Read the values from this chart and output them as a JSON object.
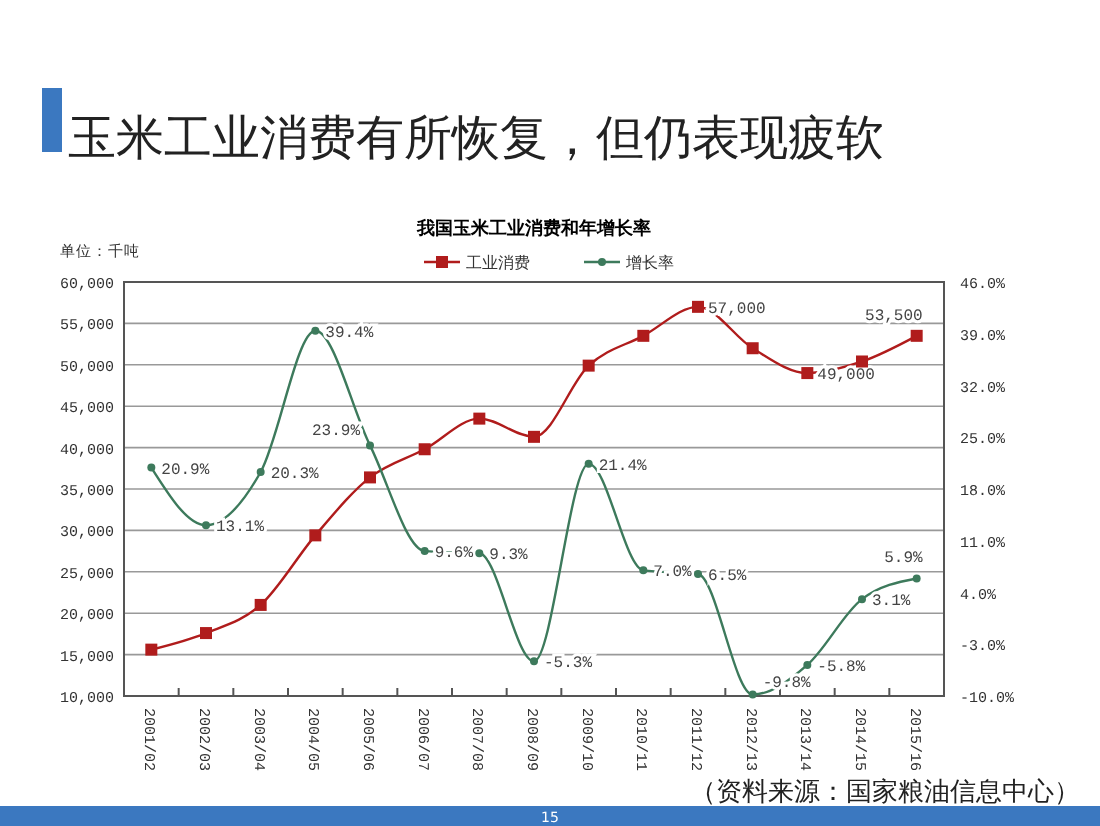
{
  "chart_data": {
    "type": "line",
    "title": "玉米工业消费有所恢复，但仍表现疲软",
    "subtitle": "我国玉米工业消费和年增长率",
    "ylabel": "单位：千吨",
    "categories": [
      "2001/02",
      "2002/03",
      "2003/04",
      "2004/05",
      "2005/06",
      "2006/07",
      "2007/08",
      "2008/09",
      "2009/10",
      "2010/11",
      "2011/12",
      "2012/13",
      "2013/14",
      "2014/15",
      "2015/16"
    ],
    "series": [
      {
        "name": "工业消费",
        "color": "#b01c1c",
        "marker": "square",
        "values": [
          15600,
          17600,
          21000,
          29400,
          36400,
          39800,
          43500,
          41300,
          49900,
          53500,
          57000,
          52000,
          49000,
          50400,
          53500
        ],
        "value_labels": [
          null,
          null,
          null,
          null,
          null,
          null,
          null,
          null,
          null,
          null,
          "57,000",
          null,
          "49,000",
          null,
          "53,500"
        ]
      },
      {
        "name": "增长率",
        "color": "#3d7a5c",
        "marker": "circle",
        "axis": "y2",
        "value_labels": [
          "20.9%",
          "13.1%",
          "20.3%",
          "39.4%",
          "23.9%",
          "9.6%",
          "9.3%",
          "-5.3%",
          "21.4%",
          "7.0%",
          "6.5%",
          "-9.8%",
          "-5.8%",
          "3.1%",
          "5.9%"
        ],
        "values": [
          20.9,
          13.1,
          20.3,
          39.4,
          23.9,
          9.6,
          9.3,
          -5.3,
          21.4,
          7.0,
          6.5,
          -9.8,
          -5.8,
          3.1,
          5.9
        ]
      }
    ],
    "ylim": [
      10000,
      60000
    ],
    "yticks": [
      {
        "value": 10000,
        "label": "10,000"
      },
      {
        "value": 15000,
        "label": "15,000"
      },
      {
        "value": 20000,
        "label": "20,000"
      },
      {
        "value": 25000,
        "label": "25,000"
      },
      {
        "value": 30000,
        "label": "30,000"
      },
      {
        "value": 35000,
        "label": "35,000"
      },
      {
        "value": 40000,
        "label": "40,000"
      },
      {
        "value": 45000,
        "label": "45,000"
      },
      {
        "value": 50000,
        "label": "50,000"
      },
      {
        "value": 55000,
        "label": "55,000"
      },
      {
        "value": 60000,
        "label": "60,000"
      }
    ],
    "y2lim": [
      -10,
      46
    ],
    "y2ticks": [
      {
        "value": -10,
        "label": "-10.0%"
      },
      {
        "value": -3,
        "label": "-3.0%"
      },
      {
        "value": 4,
        "label": "4.0%"
      },
      {
        "value": 11,
        "label": "11.0%"
      },
      {
        "value": 18,
        "label": "18.0%"
      },
      {
        "value": 25,
        "label": "25.0%"
      },
      {
        "value": 32,
        "label": "32.0%"
      },
      {
        "value": 39,
        "label": "39.0%"
      },
      {
        "value": 46,
        "label": "46.0%"
      }
    ],
    "grid": "y",
    "legend": "top",
    "line_style": "solid",
    "annotations": [
      "（资料来源：国家粮油信息中心）",
      "15"
    ]
  }
}
